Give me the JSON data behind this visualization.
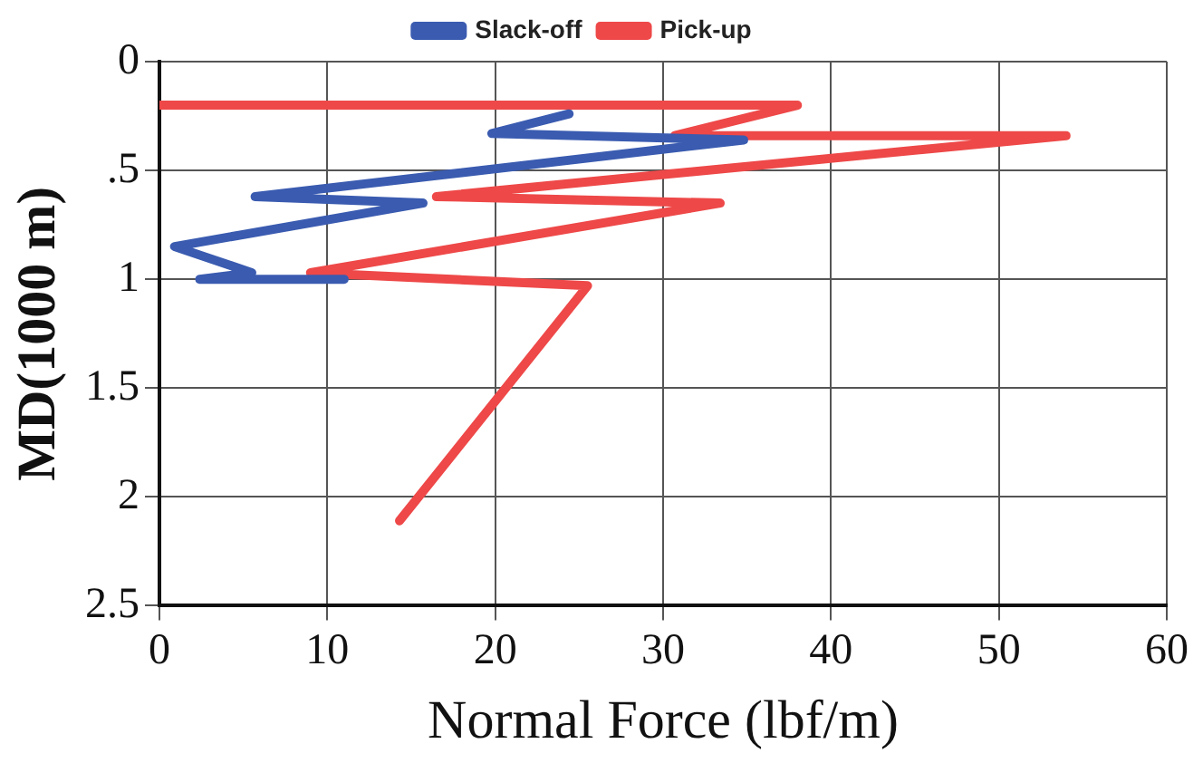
{
  "chart_data": {
    "type": "line",
    "xlabel": "Normal Force (lbf/m)",
    "ylabel": "MD(1000 m)",
    "xlim": [
      0,
      60
    ],
    "xticks": [
      0,
      10,
      20,
      30,
      40,
      50,
      60
    ],
    "ylim": [
      2.5,
      0
    ],
    "yticks": [
      {
        "value": 0,
        "label": "0"
      },
      {
        "value": 0.5,
        "label": ".5"
      },
      {
        "value": 1,
        "label": "1"
      },
      {
        "value": 1.5,
        "label": "1.5"
      },
      {
        "value": 2,
        "label": "2"
      },
      {
        "value": 2.5,
        "label": "2.5"
      }
    ],
    "grid": true,
    "legend": "top",
    "marker": "none",
    "line_style": "solid",
    "series": [
      {
        "name": "Slack-off",
        "color": "#3a5bb0",
        "x": [
          24.4,
          19.8,
          34.8,
          5.7,
          15.7,
          0.9,
          5.5,
          2.4,
          11
        ],
        "values": [
          0.24,
          0.33,
          0.36,
          0.62,
          0.65,
          0.85,
          0.97,
          1.0,
          1.0
        ]
      },
      {
        "name": "Pick-up",
        "color": "#ee4848",
        "x": [
          0,
          38,
          30.7,
          54,
          16.5,
          33.4,
          9,
          25.5,
          14.3
        ],
        "values": [
          0.2,
          0.2,
          0.34,
          0.34,
          0.62,
          0.65,
          0.97,
          1.03,
          2.11
        ]
      }
    ]
  }
}
